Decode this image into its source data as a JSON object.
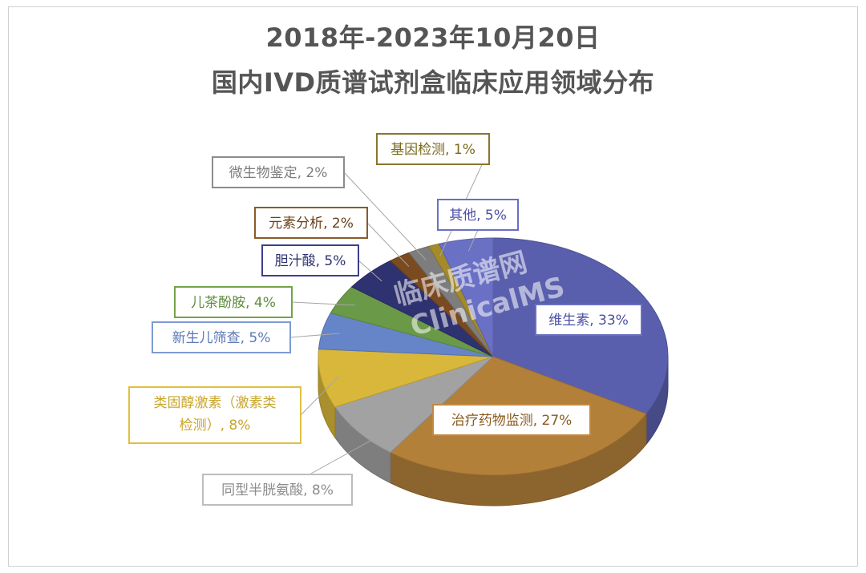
{
  "chart_data": {
    "type": "pie",
    "title_line1": "2018年-2023年10月20日",
    "title_line2": "国内IVD质谱试剂盒临床应用领域分布",
    "slices": [
      {
        "label": "维生素, 33%",
        "value": 33,
        "color": "#5a5fad",
        "border": "#6a6fc0"
      },
      {
        "label": "治疗药物监测, 27%",
        "value": 27,
        "color": "#b3803a",
        "border": "#c08a40"
      },
      {
        "label": "同型半胱氨酸, 8%",
        "value": 8,
        "color": "#a2a2a2",
        "border": "#bdbdbd"
      },
      {
        "label": "类固醇激素（激素类检测）, 8%",
        "value": 8,
        "color": "#d9b73a",
        "border": "#e0c040"
      },
      {
        "label": "新生儿筛查, 5%",
        "value": 5,
        "color": "#6585c8",
        "border": "#7e9ad4"
      },
      {
        "label": "儿茶酚胺, 4%",
        "value": 4,
        "color": "#6a9a48",
        "border": "#72a548"
      },
      {
        "label": "胆汁酸, 5%",
        "value": 5,
        "color": "#2f3270",
        "border": "#3b3f8a"
      },
      {
        "label": "元素分析, 2%",
        "value": 2,
        "color": "#7a4a20",
        "border": "#8a5a2c"
      },
      {
        "label": "微生物鉴定, 2%",
        "value": 2,
        "color": "#7d7d7d",
        "border": "#8c8c8c"
      },
      {
        "label": "基因检测, 1%",
        "value": 1,
        "color": "#a38a2b",
        "border": "#8a7530"
      },
      {
        "label": "其他, 5%",
        "value": 5,
        "color": "#6a70c4",
        "border": "#6a70c4"
      }
    ],
    "legend": "none"
  },
  "labels": {
    "cat_steroid_line1": "类固醇激素（激素类",
    "cat_steroid_line2": "检测）, 8%"
  },
  "watermark": {
    "line1": "临床质谱网",
    "line2": "ClinicalMS"
  }
}
